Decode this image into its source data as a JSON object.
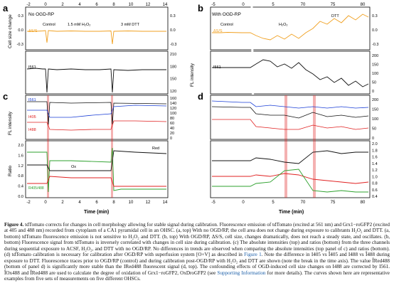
{
  "figure": {
    "panels": [
      {
        "letter": "a",
        "condition": "No OGD-RP",
        "annotations": [
          "Control",
          "1.5 mM H₂O₂",
          "3 mM DTT"
        ],
        "trace_label": "ΔS/S",
        "x_ticks": [
          "-2",
          "0",
          "2",
          "4",
          "6",
          "8",
          "10",
          "12",
          "14"
        ],
        "top_yleft_label": "Cell size change",
        "top_yleft_ticks": [
          "0.3",
          "0.0",
          "-0.3"
        ],
        "top_yright_ticks": [
          "0.3",
          "0.0",
          "-0.3"
        ],
        "fl_ylabel": "FL intensity",
        "fl_ylabel_right": "FL intensity",
        "fl_ticks": [
          "210",
          "180",
          "150",
          "120"
        ],
        "fl_trace_label": "I561"
      },
      {
        "letter": "b",
        "condition": "With OGD-RP",
        "annotations": [
          "Control",
          "H₂O₂",
          "DTT"
        ],
        "trace_label": "ΔS/S",
        "x_ticks": [
          "-5",
          "0",
          "5",
          "70",
          "75",
          "80"
        ],
        "top_yright_ticks": [
          "0.3",
          "0.0",
          "-0.3"
        ],
        "fl_ticks": [
          "200",
          "150",
          "100",
          "50",
          "0"
        ],
        "fl_trace_label": "I561"
      },
      {
        "letter": "c",
        "fl_ylabel": "FL intensity",
        "ratio_ylabel": "Ratio",
        "fl_labels": [
          "I561",
          "I405",
          "I488"
        ],
        "fl_ticks": [
          "160",
          "140",
          "120",
          "100",
          "80",
          "60",
          "40",
          "20",
          "0"
        ],
        "ratio_ticks": [
          "2.0",
          "1.6",
          "1.2",
          "0.8",
          "0.4",
          "0.0"
        ],
        "ratio_labels": [
          "Ox",
          "Red",
          "R405/488"
        ],
        "x_label": "Time (min)",
        "x_ticks": [
          "-2",
          "0",
          "2",
          "4",
          "6",
          "8",
          "10",
          "12",
          "14"
        ]
      },
      {
        "letter": "d",
        "fl_ticks": [
          "200",
          "150",
          "100",
          "50",
          "0"
        ],
        "ratio_ticks": [
          "2.0",
          "1.8",
          "1.6",
          "1.4",
          "1.2",
          "1.0",
          "0.8",
          "0.6",
          "0.4"
        ],
        "x_label": "Time (min)",
        "x_ticks": [
          "-5",
          "0",
          "5",
          "70",
          "75",
          "80"
        ]
      }
    ]
  },
  "caption": {
    "title": "Figure 4.",
    "text": "tdTomato corrects for changes in cell morphology allowing for stable signal during calibration. Fluorescence emission of tdTomato (excited at 561 nm) and Grx1−roGFP2 (excited at 405 and 488 nm) recorded from cytoplasm of a CA1 pyramidal cell in an OHSC. (a, top) With no OGD/RP, the cell area does not change during exposure to calibrants H₂O₂ and DTT. (a, bottom) tdTomato fluorescence emission is not sensitive to H₂O₂ and DTT. (b, top) With OGD/RP, ΔS/S, cell size, changes dramatically, does not reach a steady state, and oscillates. (b, bottom) Fluorescence signal from tdTomato is inversely correlated with changes in cell size during calibration. (c) The absolute intensities (top) and ratios (bottom) from the three channels during sequential exposure to ACSF, H₂O₂, and DTT with no OGD/RP. No differences in trends are observed when comparing the absolute intensities (top panel of c) and ratios (bottom). (d) tdTomato calibration is necessary for calibration after OGD/RP with superfusion system [O+V] as described in",
    "link1": "Figure 1",
    "text2": ". Note the difference in I405 vs Î405 and I488 vs Î488 during exposure to DTT. Fluorescence traces prior to OGD/RP (control) and during calibration post-OGD/RP with H₂O₂ and DTT are shown (note the break in the time axis). The value ÎRed488 (bottom of panel d) is significantly more stable than the IRed488 fluorescent signal (d, top). The confounding effects of OGD-induced cell size changes on I488 are corrected by I561. ÎOx488 and ÎRed488 are used to calculate the degree of oxidation of Grx1−roGFP2, OxDroGFP2 (see",
    "link2": "Supporting Information",
    "text3": "for more details). The curves shown here are representative examples from five sets of measurements on five different OHSCs."
  },
  "colors": {
    "orange": "#f0a020",
    "black": "#111111",
    "blue": "#1b3fd6",
    "red": "#e02020",
    "green": "#2ca02c",
    "link": "#1a5ea8"
  }
}
